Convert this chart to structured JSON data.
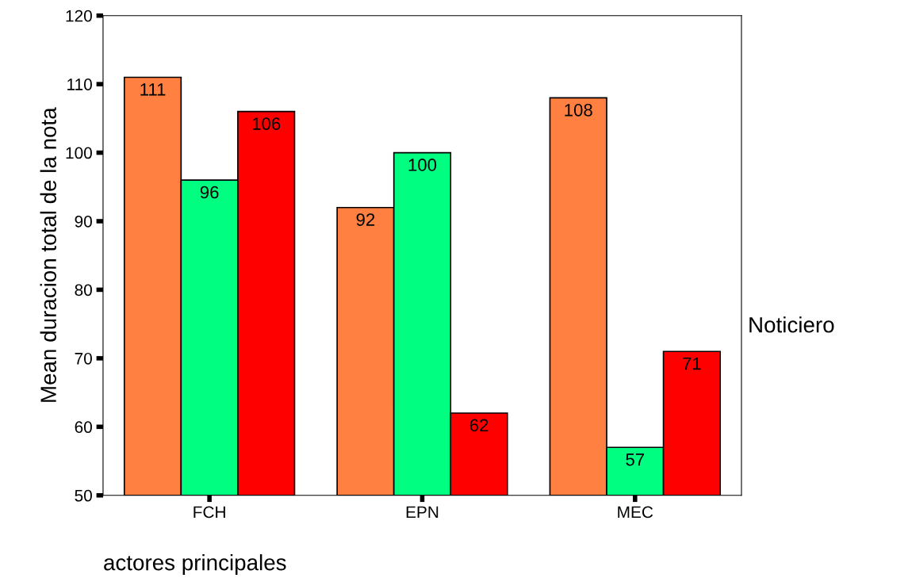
{
  "chart_data": {
    "type": "bar",
    "xlabel": "actores principales",
    "ylabel": "Mean duracion total de la nota",
    "annotations": [
      "Noticiero"
    ],
    "categories": [
      "FCH",
      "EPN",
      "MEC"
    ],
    "series": [
      {
        "color": "#ff8040",
        "values": [
          111,
          92,
          108
        ]
      },
      {
        "color": "#00ff80",
        "values": [
          96,
          100,
          57
        ]
      },
      {
        "color": "#ff0000",
        "values": [
          106,
          62,
          71
        ]
      }
    ],
    "ylim": [
      50,
      120
    ],
    "yticks": [
      50,
      60,
      70,
      80,
      90,
      100,
      110,
      120
    ],
    "data_labels": true,
    "grid": false
  }
}
